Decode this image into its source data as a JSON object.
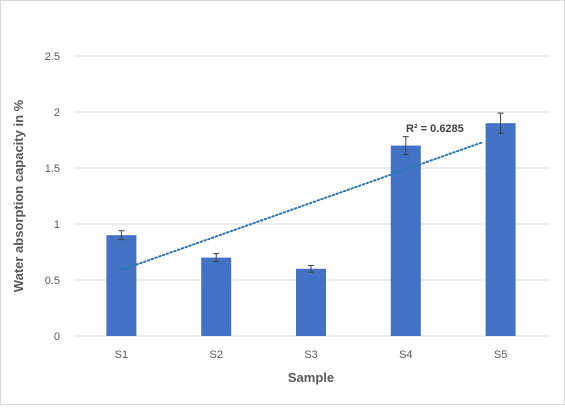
{
  "chart_data": {
    "type": "bar",
    "categories": [
      "S1",
      "S2",
      "S3",
      "S4",
      "S5"
    ],
    "values": [
      0.9,
      0.7,
      0.6,
      1.7,
      1.9
    ],
    "error_bars": [
      0.04,
      0.035,
      0.03,
      0.08,
      0.09
    ],
    "xlabel": "Sample",
    "ylabel": "Water absorption capacity in %",
    "ylim": [
      0,
      2.5
    ],
    "yticks": [
      "0",
      "0.5",
      "1",
      "1.5",
      "2",
      "2.5"
    ],
    "grid": true,
    "trendline": {
      "type": "linear",
      "style": "dotted",
      "start": 0.59,
      "end": 1.73,
      "label": "R² = 0.6285"
    },
    "colors": {
      "bar": "#4472c4",
      "trendline": "#2e75b6",
      "grid": "#d9d9d9",
      "error_bar": "#404040"
    }
  }
}
